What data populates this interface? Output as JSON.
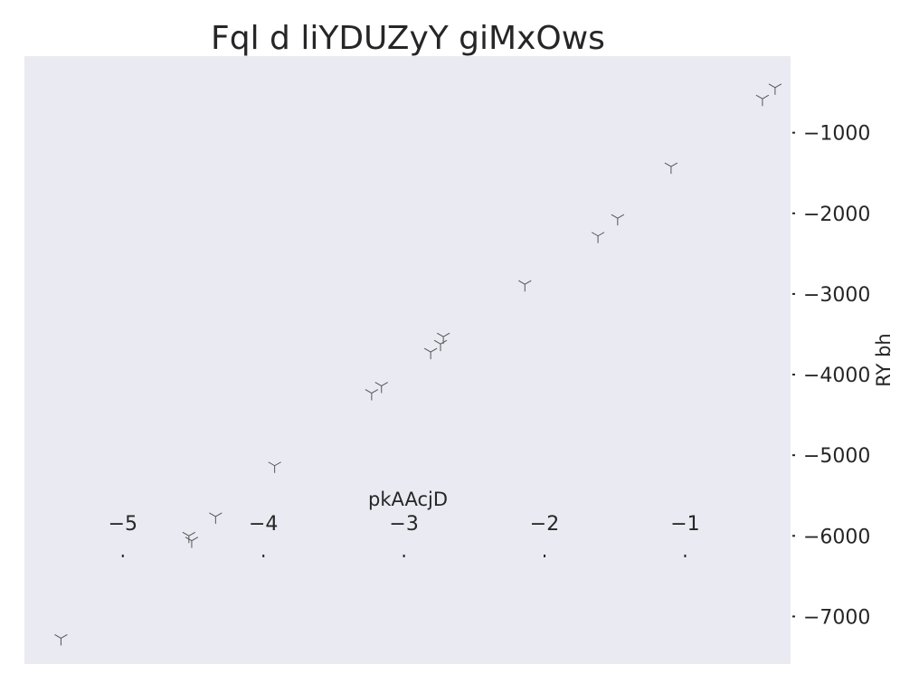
{
  "chart_data": {
    "type": "scatter",
    "title": "Fql d liYDUZyY giMxOws",
    "xlabel": "pkAAcjD",
    "ylabel": "RY bh",
    "xlim": [
      -5.7,
      -0.25
    ],
    "ylim": [
      -7590,
      -50
    ],
    "x_ticks": [
      -5,
      -4,
      -3,
      -2,
      -1
    ],
    "x_tick_labels": [
      "−5",
      "−4",
      "−3",
      "−2",
      "−1"
    ],
    "y_ticks": [
      -1000,
      -2000,
      -3000,
      -4000,
      -5000,
      -6000,
      -7000
    ],
    "y_tick_labels": [
      "−1000",
      "−2000",
      "−3000",
      "−4000",
      "−5000",
      "−6000",
      "−7000"
    ],
    "x_axis_position": "inside, near y = -6000",
    "y_axis_position": "right",
    "grid": false,
    "marker": "tri_down",
    "colors": {
      "background": "#eaeaf2",
      "marker": "#555555",
      "text": "#262626"
    },
    "series": [
      {
        "points": [
          {
            "x": -5.44,
            "y": -7270
          },
          {
            "x": -4.53,
            "y": -6000
          },
          {
            "x": -4.51,
            "y": -6060
          },
          {
            "x": -4.34,
            "y": -5760
          },
          {
            "x": -3.92,
            "y": -5130
          },
          {
            "x": -3.23,
            "y": -4230
          },
          {
            "x": -3.16,
            "y": -4140
          },
          {
            "x": -2.81,
            "y": -3720
          },
          {
            "x": -2.74,
            "y": -3620
          },
          {
            "x": -2.72,
            "y": -3530
          },
          {
            "x": -2.14,
            "y": -2880
          },
          {
            "x": -1.62,
            "y": -2280
          },
          {
            "x": -1.48,
            "y": -2060
          },
          {
            "x": -1.1,
            "y": -1420
          },
          {
            "x": -0.45,
            "y": -580
          },
          {
            "x": -0.36,
            "y": -440
          }
        ]
      }
    ]
  }
}
